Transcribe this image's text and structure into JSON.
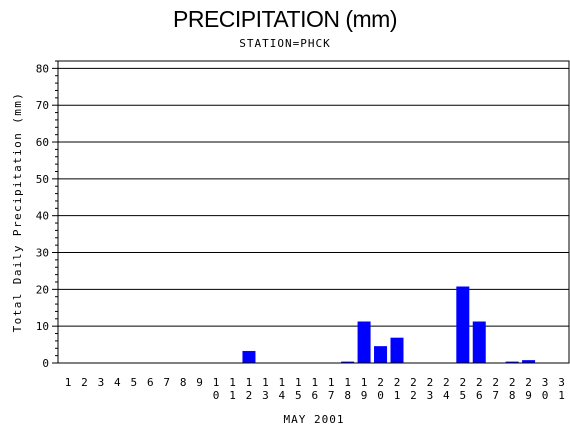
{
  "chart_data": {
    "type": "bar",
    "title": "PRECIPITATION (mm)",
    "subtitle": "STATION=PHCK",
    "xlabel": "MAY 2001",
    "ylabel": "Total Daily Precipitation (mm)",
    "ylim": [
      0,
      82
    ],
    "yticks": [
      0,
      10,
      20,
      30,
      40,
      50,
      60,
      70,
      80
    ],
    "grid": "horizontal",
    "bar_color": "#0000ff",
    "categories": [
      "1",
      "2",
      "3",
      "4",
      "5",
      "6",
      "7",
      "8",
      "9",
      "10",
      "11",
      "12",
      "13",
      "14",
      "15",
      "16",
      "17",
      "18",
      "19",
      "20",
      "21",
      "22",
      "23",
      "24",
      "25",
      "26",
      "27",
      "28",
      "29",
      "30",
      "31"
    ],
    "values": [
      0,
      0,
      0,
      0,
      0,
      0,
      0,
      0,
      0,
      0,
      0,
      3.2,
      0,
      0,
      0,
      0,
      0,
      0.3,
      11.2,
      4.5,
      6.8,
      0,
      0,
      0,
      20.7,
      11.2,
      0,
      0.3,
      0.7,
      0,
      0
    ]
  }
}
